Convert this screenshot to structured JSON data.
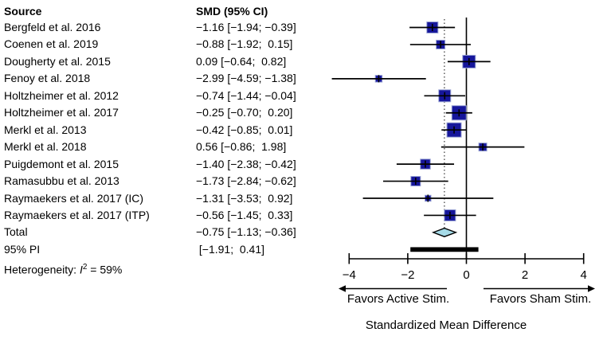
{
  "table": {
    "source_header": "Source",
    "smd_header": "SMD (95% CI)"
  },
  "footer": {
    "heterogeneity_prefix": "Heterogeneity: ",
    "heterogeneity_stat": "I",
    "heterogeneity_sup": "2",
    "heterogeneity_suffix": " = 59%"
  },
  "chart_data": {
    "type": "forest",
    "xlabel": "Standardized Mean Difference",
    "favors_left": "Favors Active Stim.",
    "favors_right": "Favors Sham Stim.",
    "axis_ticks": [
      -4,
      -2,
      0,
      2,
      4
    ],
    "xlim": [
      -4,
      4
    ],
    "zero_line": 0,
    "overall_effect": -0.75,
    "grid": false,
    "studies": [
      {
        "label": "Bergfeld et al. 2016",
        "smd_text": "−1.16 [−1.94; −0.39]",
        "est": -1.16,
        "lo": -1.94,
        "hi": -0.39,
        "size": 14
      },
      {
        "label": "Coenen et al. 2019",
        "smd_text": "−0.88 [−1.92;  0.15]",
        "est": -0.88,
        "lo": -1.92,
        "hi": 0.15,
        "size": 11
      },
      {
        "label": "Dougherty et al. 2015",
        "smd_text": "0.09 [−0.64;  0.82]",
        "est": 0.09,
        "lo": -0.64,
        "hi": 0.82,
        "size": 16
      },
      {
        "label": "Fenoy et al. 2018",
        "smd_text": "−2.99 [−4.59; −1.38]",
        "est": -2.99,
        "lo": -4.59,
        "hi": -1.38,
        "size": 8.5
      },
      {
        "label": "Holtzheimer et al. 2012",
        "smd_text": "−0.74 [−1.44; −0.04]",
        "est": -0.74,
        "lo": -1.44,
        "hi": -0.04,
        "size": 15
      },
      {
        "label": "Holtzheimer et al. 2017",
        "smd_text": "−0.25 [−0.70;  0.20]",
        "est": -0.25,
        "lo": -0.7,
        "hi": 0.2,
        "size": 18
      },
      {
        "label": "Merkl et al. 2013",
        "smd_text": "−0.42 [−0.85;  0.01]",
        "est": -0.42,
        "lo": -0.85,
        "hi": 0.01,
        "size": 18
      },
      {
        "label": "Merkl et al. 2018",
        "smd_text": "0.56 [−0.86;  1.98]",
        "est": 0.56,
        "lo": -0.86,
        "hi": 1.98,
        "size": 10
      },
      {
        "label": "Puigdemont et al. 2015",
        "smd_text": "−1.40 [−2.38; −0.42]",
        "est": -1.4,
        "lo": -2.38,
        "hi": -0.42,
        "size": 12.5
      },
      {
        "label": "Ramasubbu et al. 2013",
        "smd_text": "−1.73 [−2.84; −0.62]",
        "est": -1.73,
        "lo": -2.84,
        "hi": -0.62,
        "size": 12
      },
      {
        "label": "Raymaekers et al. 2017 (IC)",
        "smd_text": "−1.31 [−3.53;  0.92]",
        "est": -1.31,
        "lo": -3.53,
        "hi": 0.92,
        "size": 7.5
      },
      {
        "label": "Raymaekers et al. 2017 (ITP)",
        "smd_text": "−0.56 [−1.45;  0.33]",
        "est": -0.56,
        "lo": -1.45,
        "hi": 0.33,
        "size": 14
      }
    ],
    "total": {
      "label": "Total",
      "smd_text": "−0.75 [−1.13; −0.36]",
      "est": -0.75,
      "lo": -1.13,
      "hi": -0.36
    },
    "pi": {
      "label": "95% PI",
      "smd_text": " [−1.91;  0.41]",
      "lo": -1.91,
      "hi": 0.41
    },
    "colors": {
      "square": "#16169b",
      "square_edge": "#9aa4d4",
      "diamond_fill": "#a6dbe8",
      "diamond_edge": "#000000",
      "pi_bar": "#000000",
      "line": "#000000",
      "dotted_line": "#333333"
    }
  }
}
